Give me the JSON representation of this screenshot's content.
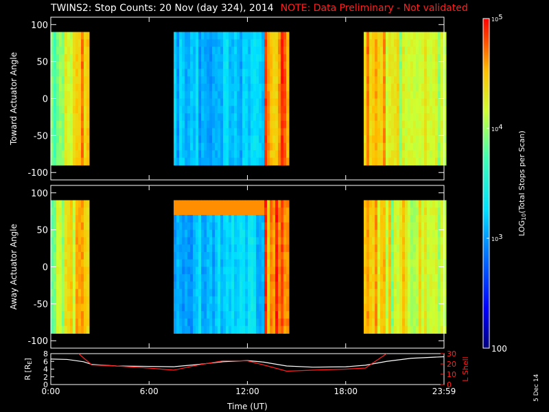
{
  "title": "TWINS2: Stop Counts: 20 Nov (day 324), 2014",
  "note": "NOTE: Data Preliminary - Not validated",
  "footer_date": "5 Dec 14",
  "colorbar": {
    "label_log": "LOG",
    "label_sub": "10",
    "label_rest": "(Total Stops per Scan)",
    "ticks": [
      {
        "value": 100,
        "label": "100"
      },
      {
        "value": 1000,
        "label": "10",
        "exp": "3"
      },
      {
        "value": 10000,
        "label": "10",
        "exp": "4"
      },
      {
        "value": 100000,
        "label": "10",
        "exp": "5"
      }
    ],
    "range": [
      100,
      100000
    ],
    "scale": "log"
  },
  "chart_data": [
    {
      "type": "heatmap",
      "ylabel": "Toward Actuator Angle",
      "ylim": [
        -110,
        110
      ],
      "yticks": [
        "100",
        "50",
        "0",
        "-50",
        "-100"
      ],
      "ytick_values": [
        100,
        50,
        0,
        -50,
        -100
      ],
      "xlim_hours": [
        0,
        24
      ],
      "data_segments_hours": [
        [
          0.0,
          2.2
        ],
        [
          7.5,
          14.4
        ],
        [
          19.1,
          24.0
        ]
      ],
      "color_scale": "log"
    },
    {
      "type": "heatmap",
      "ylabel": "Away Actuator Angle",
      "ylim": [
        -110,
        110
      ],
      "yticks": [
        "100",
        "50",
        "0",
        "-50",
        "-100"
      ],
      "ytick_values": [
        100,
        50,
        0,
        -50,
        -100
      ],
      "xlim_hours": [
        0,
        24
      ],
      "data_segments_hours": [
        [
          0.0,
          2.2
        ],
        [
          7.5,
          14.4
        ],
        [
          19.1,
          24.0
        ]
      ],
      "color_scale": "log"
    },
    {
      "type": "line",
      "xlabel": "Time (UT)",
      "xticks": [
        "0:00",
        "6:00",
        "12:00",
        "18:00",
        "23:59"
      ],
      "xtick_values": [
        0,
        6,
        12,
        18,
        24
      ],
      "left_axis": {
        "label_main": "R [R",
        "label_sub": "E",
        "label_end": "]",
        "ylim": [
          0,
          8
        ],
        "ticks": [
          "0",
          "2",
          "4",
          "6",
          "8"
        ],
        "tick_values": [
          0,
          2,
          4,
          6,
          8
        ]
      },
      "right_axis": {
        "label": "L Shell",
        "ylim": [
          0,
          30
        ],
        "ticks": [
          "0",
          "10",
          "20",
          "30"
        ],
        "tick_values": [
          0,
          10,
          20,
          30
        ],
        "color": "#ff2020"
      },
      "series": [
        {
          "color": "#ffffff",
          "axis": "left",
          "x": [
            0,
            1,
            2,
            2.5,
            4,
            6,
            7.5,
            9,
            10.5,
            12,
            13,
            14.4,
            16,
            18,
            19.2,
            20.5,
            22,
            24
          ],
          "y": [
            6.6,
            6.5,
            5.9,
            5.2,
            4.8,
            4.7,
            4.6,
            5.2,
            5.9,
            6.2,
            5.8,
            4.8,
            4.5,
            4.6,
            5.0,
            6.0,
            6.8,
            7.2
          ]
        },
        {
          "color": "#ff2020",
          "axis": "right",
          "x": [
            1.7,
            2.5,
            4,
            6,
            7.5,
            9,
            10.5,
            12,
            13,
            14.4,
            16,
            18,
            19.2,
            20.5
          ],
          "y": [
            30,
            19,
            18,
            16,
            14,
            19,
            23,
            23,
            19,
            13,
            14,
            15,
            16,
            30
          ]
        }
      ]
    }
  ]
}
